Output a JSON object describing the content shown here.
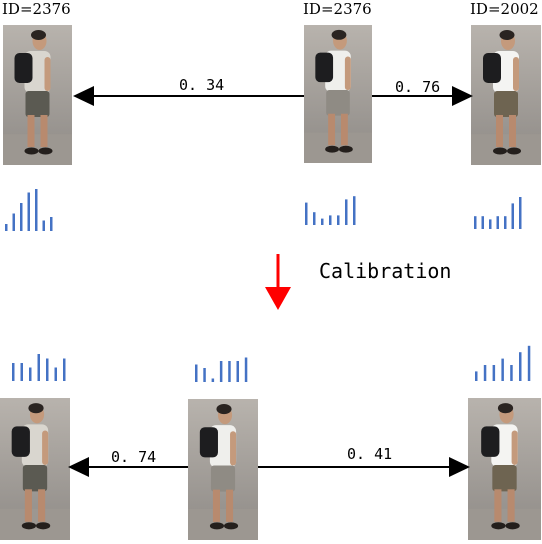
{
  "top": {
    "left_id": "ID=2376",
    "center_id": "ID=2376",
    "right_id": "ID=2002",
    "score_left": "0. 34",
    "score_right": "0. 76",
    "hist_left": [
      2,
      5,
      8,
      11,
      12,
      3,
      4
    ],
    "hist_center": [
      7,
      4,
      2,
      3,
      3,
      8,
      9
    ],
    "hist_right": [
      4,
      4,
      3,
      4,
      4,
      8,
      10
    ]
  },
  "step": {
    "label": "Calibration",
    "arrow_color": "#ff0000"
  },
  "bottom": {
    "score_left": "0. 74",
    "score_right": "0. 41",
    "hist_left": [
      4,
      4,
      3,
      6,
      5,
      3,
      5
    ],
    "hist_center": [
      5,
      4,
      1,
      6,
      6,
      6,
      7
    ],
    "hist_right": [
      3,
      5,
      5,
      7,
      5,
      9,
      11
    ]
  },
  "colors": {
    "hist": "#4472c4",
    "arrow": "#000000"
  }
}
